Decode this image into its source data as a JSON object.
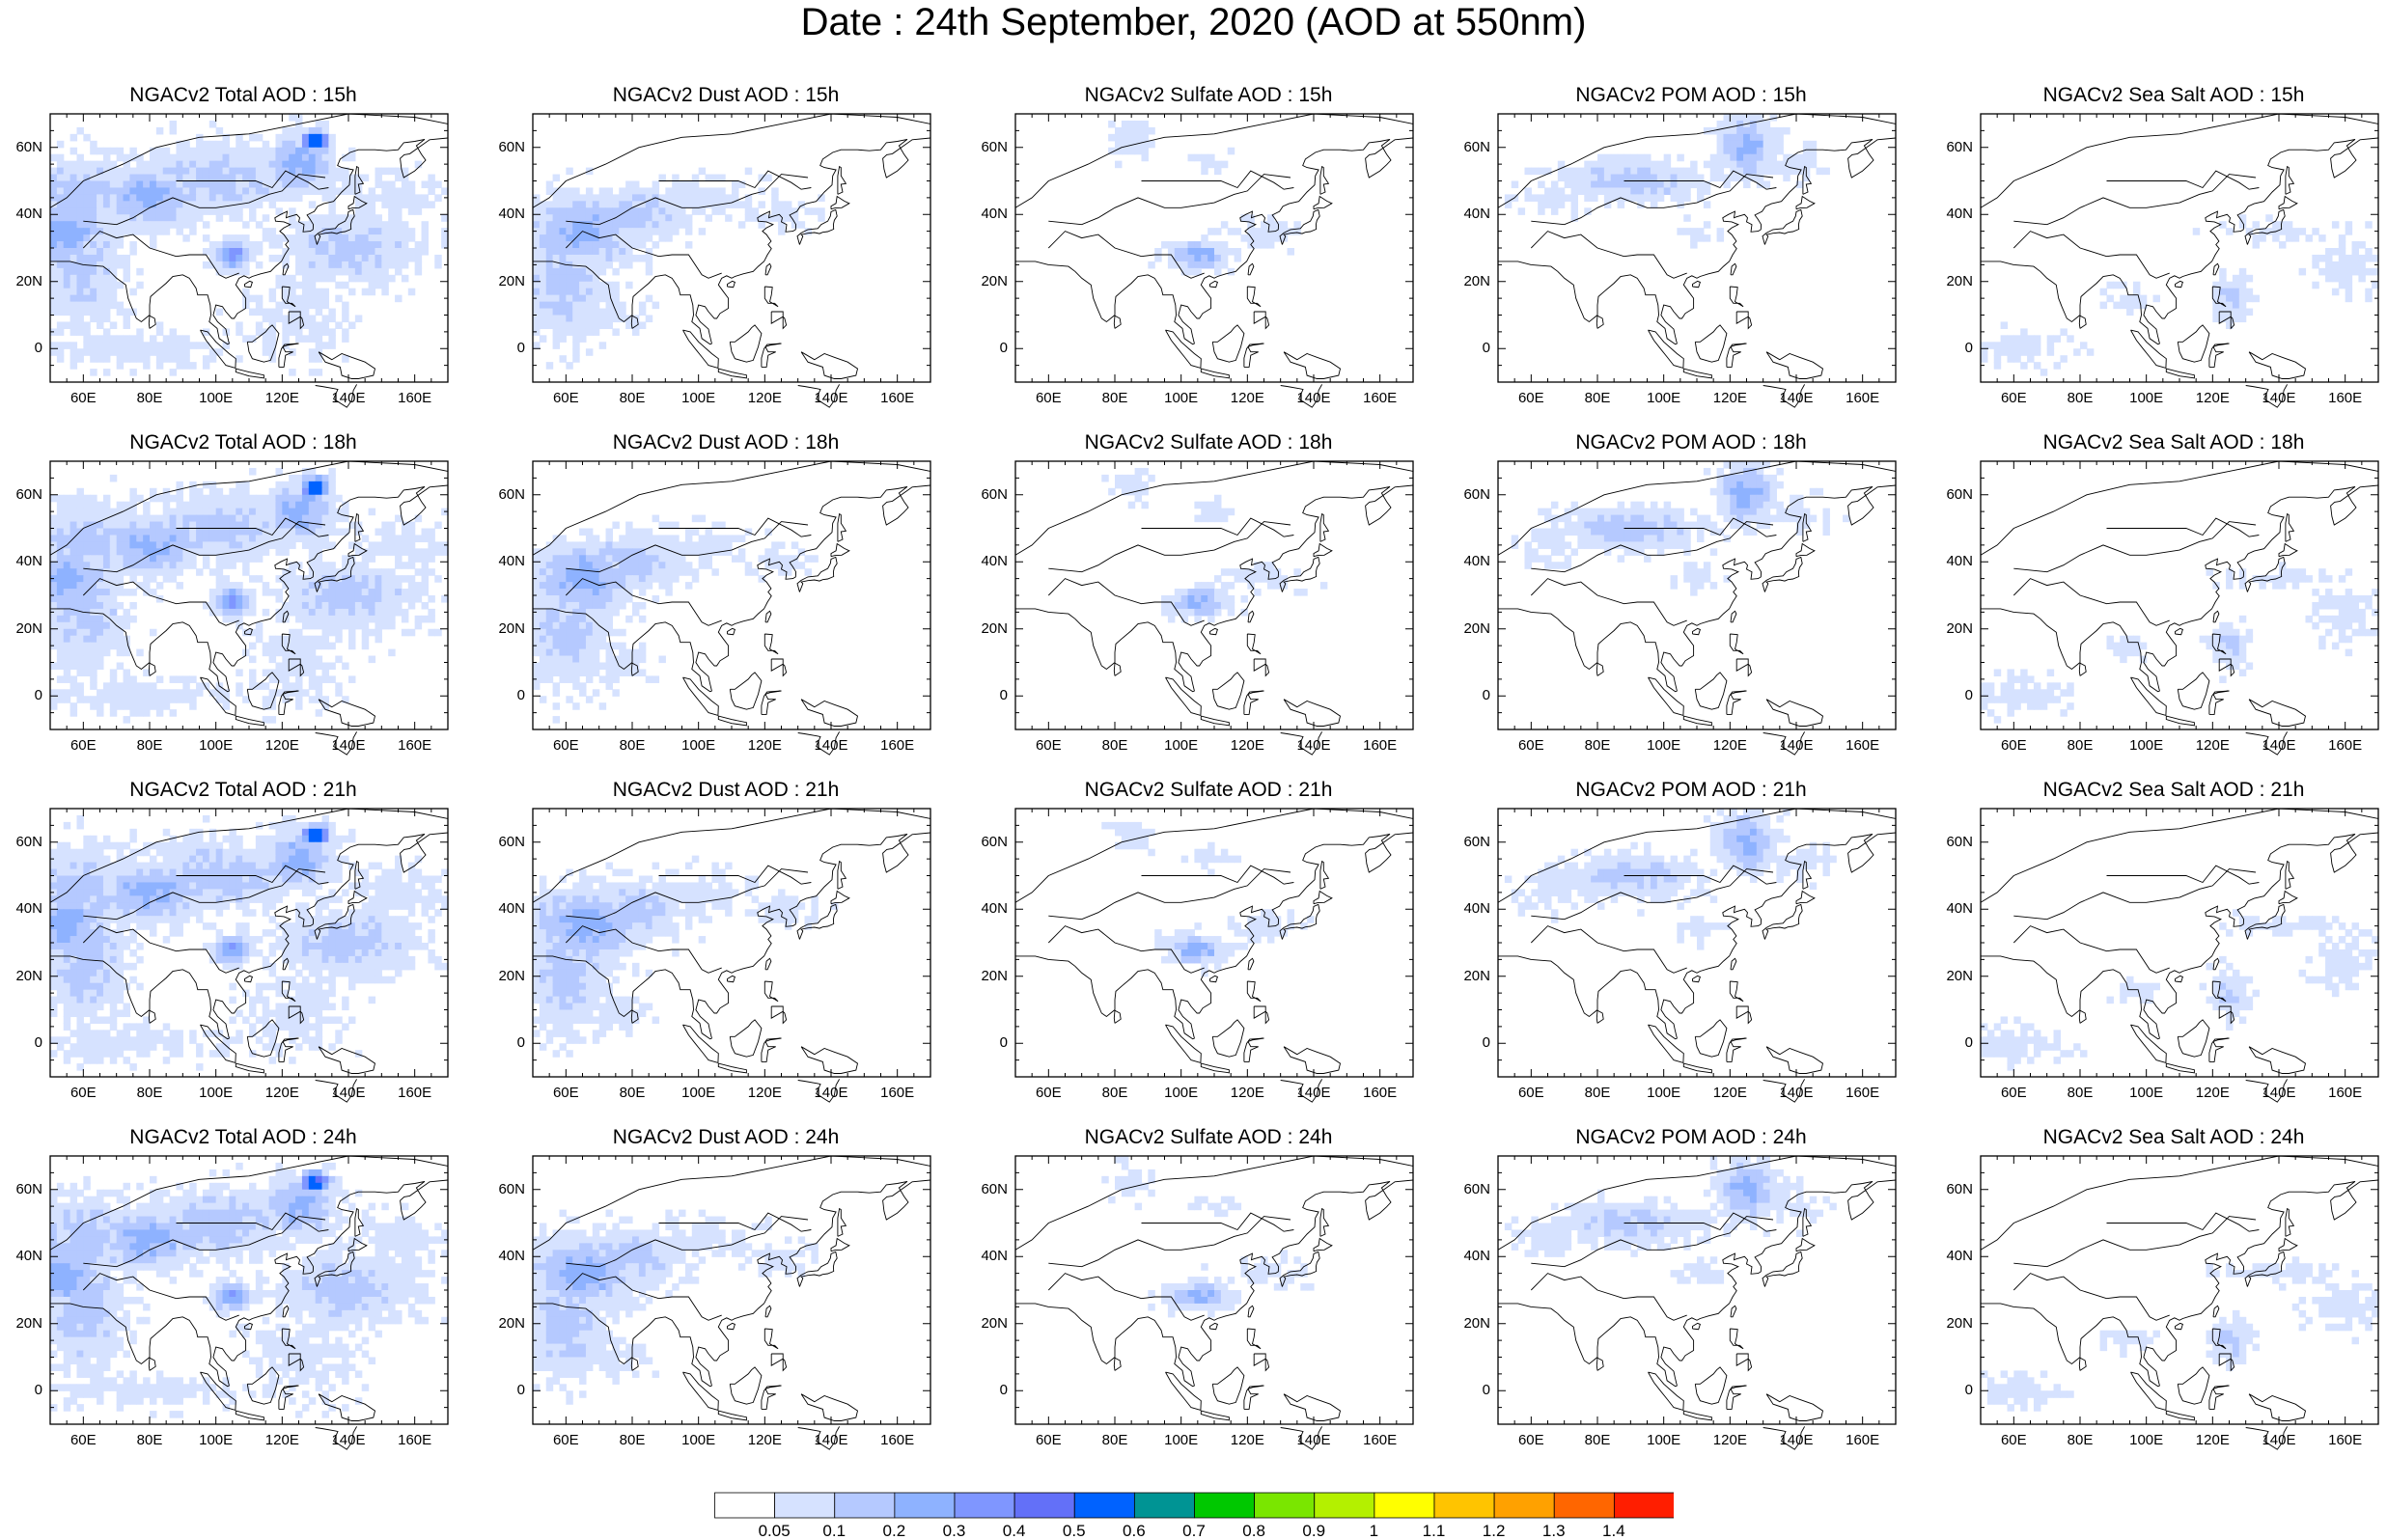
{
  "title": "Date : 24th  September, 2020 (AOD at 550nm)",
  "chart_data": {
    "type": "heatmap",
    "layout": "grid of 4 rows (forecast hours) x 5 columns (aerosol species)",
    "species": [
      "Total",
      "Dust",
      "Sulfate",
      "POM",
      "Sea Salt"
    ],
    "hours": [
      "15h",
      "18h",
      "21h",
      "24h"
    ],
    "panels": [
      {
        "title": "NGACv2 Total AOD : 15h",
        "species": "Total",
        "hour": "15h"
      },
      {
        "title": "NGACv2 Dust AOD : 15h",
        "species": "Dust",
        "hour": "15h"
      },
      {
        "title": "NGACv2 Sulfate AOD : 15h",
        "species": "Sulfate",
        "hour": "15h"
      },
      {
        "title": "NGACv2 POM AOD : 15h",
        "species": "POM",
        "hour": "15h"
      },
      {
        "title": "NGACv2 Sea Salt AOD : 15h",
        "species": "Sea Salt",
        "hour": "15h"
      },
      {
        "title": "NGACv2 Total AOD : 18h",
        "species": "Total",
        "hour": "18h"
      },
      {
        "title": "NGACv2 Dust AOD : 18h",
        "species": "Dust",
        "hour": "18h"
      },
      {
        "title": "NGACv2 Sulfate AOD : 18h",
        "species": "Sulfate",
        "hour": "18h"
      },
      {
        "title": "NGACv2 POM AOD : 18h",
        "species": "POM",
        "hour": "18h"
      },
      {
        "title": "NGACv2 Sea Salt AOD : 18h",
        "species": "Sea Salt",
        "hour": "18h"
      },
      {
        "title": "NGACv2 Total AOD : 21h",
        "species": "Total",
        "hour": "21h"
      },
      {
        "title": "NGACv2 Dust AOD : 21h",
        "species": "Dust",
        "hour": "21h"
      },
      {
        "title": "NGACv2 Sulfate AOD : 21h",
        "species": "Sulfate",
        "hour": "21h"
      },
      {
        "title": "NGACv2 POM AOD : 21h",
        "species": "POM",
        "hour": "21h"
      },
      {
        "title": "NGACv2 Sea Salt AOD : 21h",
        "species": "Sea Salt",
        "hour": "21h"
      },
      {
        "title": "NGACv2 Total AOD : 24h",
        "species": "Total",
        "hour": "24h"
      },
      {
        "title": "NGACv2 Dust AOD : 24h",
        "species": "Dust",
        "hour": "24h"
      },
      {
        "title": "NGACv2 Sulfate AOD : 24h",
        "species": "Sulfate",
        "hour": "24h"
      },
      {
        "title": "NGACv2 POM AOD : 24h",
        "species": "POM",
        "hour": "24h"
      },
      {
        "title": "NGACv2 Sea Salt  AOD : 24h",
        "species": "Sea Salt",
        "hour": "24h"
      }
    ],
    "lon_range": [
      50,
      170
    ],
    "lat_range": [
      -10,
      70
    ],
    "lon_ticks": [
      60,
      80,
      100,
      120,
      140,
      160
    ],
    "lon_tick_labels": [
      "60E",
      "80E",
      "100E",
      "120E",
      "140E",
      "160E"
    ],
    "lat_ticks": [
      0,
      20,
      40,
      60
    ],
    "lat_tick_labels": [
      "0",
      "20N",
      "40N",
      "60N"
    ],
    "colorbar": {
      "levels": [
        0.05,
        0.1,
        0.2,
        0.3,
        0.4,
        0.5,
        0.6,
        0.7,
        0.8,
        0.9,
        1,
        1.1,
        1.2,
        1.3,
        1.4
      ],
      "labels": [
        "0.05",
        "0.1",
        "0.2",
        "0.3",
        "0.4",
        "0.5",
        "0.6",
        "0.7",
        "0.8",
        "0.9",
        "1",
        "1.1",
        "1.2",
        "1.3",
        "1.4"
      ],
      "colors": [
        "#ffffff",
        "#d6e2ff",
        "#b5c9ff",
        "#8eb2ff",
        "#7f96ff",
        "#6370f8",
        "#0062ff",
        "#009494",
        "#00c800",
        "#7ae600",
        "#b4f000",
        "#ffff00",
        "#ffc400",
        "#ffa100",
        "#ff6600",
        "#ff1e00"
      ],
      "orientation": "horizontal",
      "placement": "bottom"
    },
    "notes_visible": "AOD shaded regions over Asia and the western Pacific"
  },
  "coastline_color": "#000000"
}
